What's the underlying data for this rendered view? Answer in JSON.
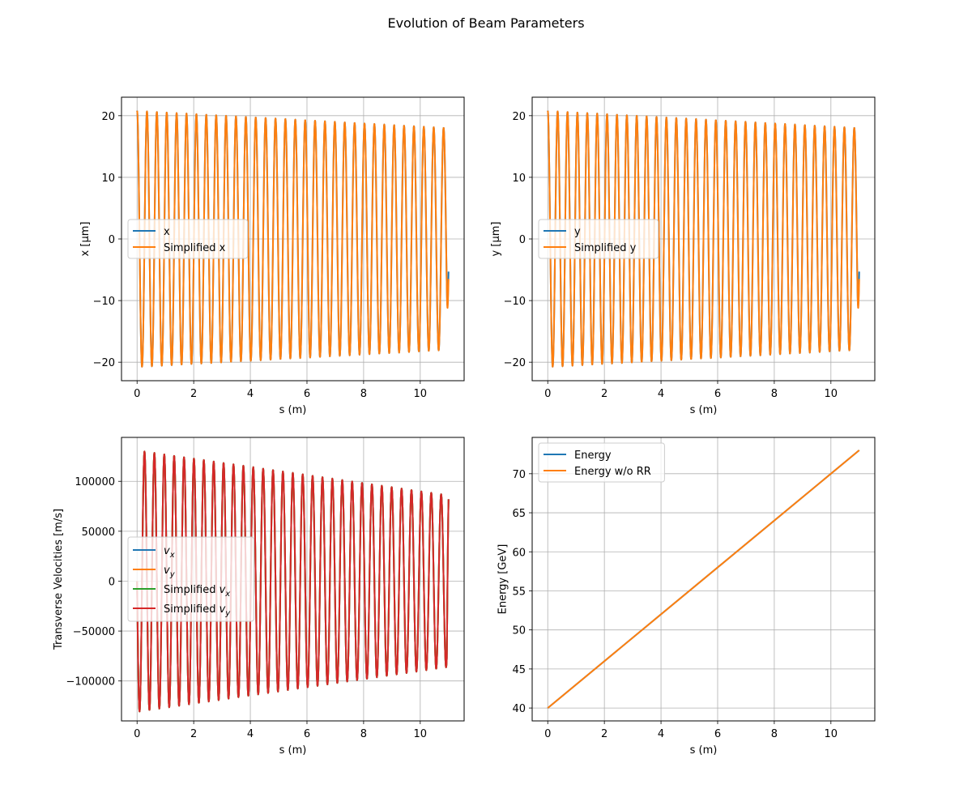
{
  "figure": {
    "title": "Evolution of Beam Parameters"
  },
  "chart_data": [
    {
      "type": "line",
      "function": "oscillation",
      "xlabel": "s (m)",
      "ylabel": "x [μm]",
      "xlim": [
        -0.55,
        11.55
      ],
      "ylim": [
        -23,
        23
      ],
      "xticks": [
        0,
        2,
        4,
        6,
        8,
        10
      ],
      "yticks": [
        -20,
        -10,
        0,
        10,
        20
      ],
      "grid": true,
      "legend_position": "center-left",
      "s_range": [
        0,
        11
      ],
      "cycles": 31.5,
      "amplitude_start": 20.8,
      "amplitude_end": 18.0,
      "end_values": [
        -5.3,
        -6.5
      ],
      "series": [
        {
          "name": "x",
          "color": "#1f77b4"
        },
        {
          "name": "Simplified x",
          "color": "#ff7f0e"
        }
      ]
    },
    {
      "type": "line",
      "function": "oscillation",
      "xlabel": "s (m)",
      "ylabel": "y [μm]",
      "xlim": [
        -0.55,
        11.55
      ],
      "ylim": [
        -23,
        23
      ],
      "xticks": [
        0,
        2,
        4,
        6,
        8,
        10
      ],
      "yticks": [
        -20,
        -10,
        0,
        10,
        20
      ],
      "grid": true,
      "legend_position": "center-left",
      "s_range": [
        0,
        11
      ],
      "cycles": 31.5,
      "amplitude_start": 20.8,
      "amplitude_end": 18.0,
      "end_values": [
        -5.3,
        -6.5
      ],
      "series": [
        {
          "name": "y",
          "color": "#1f77b4"
        },
        {
          "name": "Simplified y",
          "color": "#ff7f0e"
        }
      ]
    },
    {
      "type": "line",
      "function": "velocity",
      "xlabel": "s (m)",
      "ylabel": "Transverse Velocities [m/s]",
      "xlim": [
        -0.55,
        11.55
      ],
      "ylim": [
        -140000,
        144000
      ],
      "xticks": [
        0,
        2,
        4,
        6,
        8,
        10
      ],
      "yticks": [
        -100000,
        -50000,
        0,
        50000,
        100000
      ],
      "grid": true,
      "legend_position": "center-left",
      "s_range": [
        0,
        11
      ],
      "cycles": 31.5,
      "amplitude_start": 131000,
      "amplitude_end": 86000,
      "end_values": [
        82000,
        82000
      ],
      "series": [
        {
          "name": "v",
          "subscript": "x",
          "color": "#1f77b4"
        },
        {
          "name": "v",
          "subscript": "y",
          "color": "#ff7f0e"
        },
        {
          "name": "Simplified v",
          "subscript": "x",
          "color": "#2ca02c"
        },
        {
          "name": "Simplified v",
          "subscript": "y",
          "color": "#d62728"
        }
      ]
    },
    {
      "type": "line",
      "function": "linear",
      "xlabel": "s (m)",
      "ylabel": "Energy [GeV]",
      "xlim": [
        -0.55,
        11.55
      ],
      "ylim": [
        38.35,
        74.65
      ],
      "xticks": [
        0,
        2,
        4,
        6,
        8,
        10
      ],
      "yticks": [
        40,
        45,
        50,
        55,
        60,
        65,
        70
      ],
      "grid": true,
      "legend_position": "top-left",
      "s_range": [
        0,
        11
      ],
      "start_value": 40,
      "end_value": 73,
      "series": [
        {
          "name": "Energy",
          "color": "#1f77b4"
        },
        {
          "name": "Energy w/o RR",
          "color": "#ff7f0e"
        }
      ]
    }
  ]
}
